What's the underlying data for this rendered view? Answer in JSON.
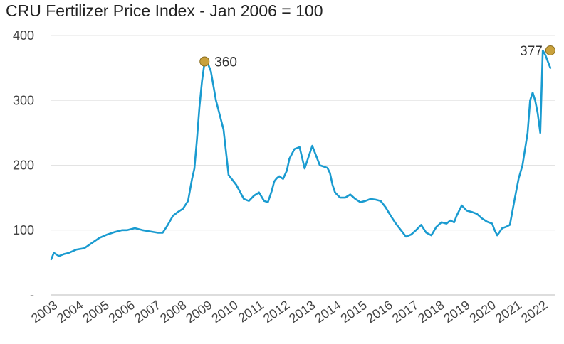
{
  "chart_data": {
    "type": "line",
    "title": "CRU Fertilizer Price Index - Jan 2006 = 100",
    "xlabel": "",
    "ylabel": "",
    "ylim": [
      0,
      400
    ],
    "xlim": [
      2003,
      2022.9
    ],
    "yticks": [
      0,
      100,
      200,
      300,
      400
    ],
    "ytick_labels": [
      "-",
      "100",
      "200",
      "300",
      "400"
    ],
    "xtick_labels": [
      "2003",
      "2004",
      "2005",
      "2006",
      "2007",
      "2008",
      "2009",
      "2010",
      "2011",
      "2012",
      "2013",
      "2014",
      "2015",
      "2016",
      "2017",
      "2018",
      "2019",
      "2020",
      "2021",
      "2022"
    ],
    "grid": true,
    "legend": "none",
    "colors": {
      "line": "#1a9bd0",
      "marker": "#c9a13c",
      "grid": "#e3e3e3",
      "axis": "#bbbbbb"
    },
    "series": [
      {
        "x": [
          2003.0,
          2003.1,
          2003.3,
          2003.5,
          2003.7,
          2004.0,
          2004.3,
          2004.6,
          2004.9,
          2005.2,
          2005.5,
          2005.8,
          2006.0,
          2006.3,
          2006.6,
          2006.9,
          2007.2,
          2007.4,
          2007.6,
          2007.8,
          2008.0,
          2008.2,
          2008.4,
          2008.55,
          2008.65,
          2008.75,
          2008.85,
          2008.95,
          2009.05,
          2009.15,
          2009.3,
          2009.5,
          2009.8,
          2010.0,
          2010.3,
          2010.6,
          2010.8,
          2011.0,
          2011.2,
          2011.4,
          2011.55,
          2011.7,
          2011.8,
          2011.9,
          2012.0,
          2012.15,
          2012.3,
          2012.4,
          2012.6,
          2012.8,
          2013.0,
          2013.3,
          2013.6,
          2013.9,
          2014.0,
          2014.1,
          2014.2,
          2014.4,
          2014.6,
          2014.8,
          2015.0,
          2015.2,
          2015.4,
          2015.6,
          2015.8,
          2016.0,
          2016.2,
          2016.4,
          2016.6,
          2016.8,
          2017.0,
          2017.2,
          2017.4,
          2017.6,
          2017.8,
          2018.0,
          2018.2,
          2018.4,
          2018.6,
          2018.75,
          2018.9,
          2019.0,
          2019.2,
          2019.4,
          2019.6,
          2019.8,
          2020.0,
          2020.2,
          2020.4,
          2020.5,
          2020.6,
          2020.8,
          2020.95,
          2021.1,
          2021.3,
          2021.45,
          2021.6,
          2021.8,
          2021.9,
          2022.0,
          2022.1,
          2022.2,
          2022.3,
          2022.4,
          2022.5,
          2022.6,
          2022.65,
          2022.7
        ],
        "y": [
          55,
          65,
          60,
          63,
          65,
          70,
          72,
          80,
          88,
          93,
          97,
          100,
          100,
          103,
          100,
          98,
          96,
          96,
          108,
          122,
          128,
          133,
          145,
          178,
          195,
          240,
          290,
          330,
          358,
          360,
          345,
          300,
          255,
          185,
          170,
          148,
          145,
          153,
          158,
          145,
          143,
          160,
          175,
          180,
          183,
          179,
          192,
          210,
          225,
          228,
          195,
          230,
          200,
          196,
          188,
          170,
          158,
          150,
          150,
          155,
          148,
          143,
          145,
          148,
          147,
          145,
          135,
          122,
          110,
          100,
          90,
          93,
          100,
          108,
          96,
          92,
          105,
          112,
          110,
          115,
          112,
          122,
          138,
          130,
          128,
          125,
          118,
          113,
          110,
          100,
          92,
          103,
          105,
          108,
          150,
          180,
          200,
          250,
          300,
          312,
          300,
          280,
          250,
          377,
          370,
          360,
          355,
          350
        ]
      }
    ],
    "annotations": [
      {
        "label": "360",
        "x": 2009.05,
        "y": 360
      },
      {
        "label": "377",
        "x": 2022.7,
        "y": 377
      }
    ]
  }
}
